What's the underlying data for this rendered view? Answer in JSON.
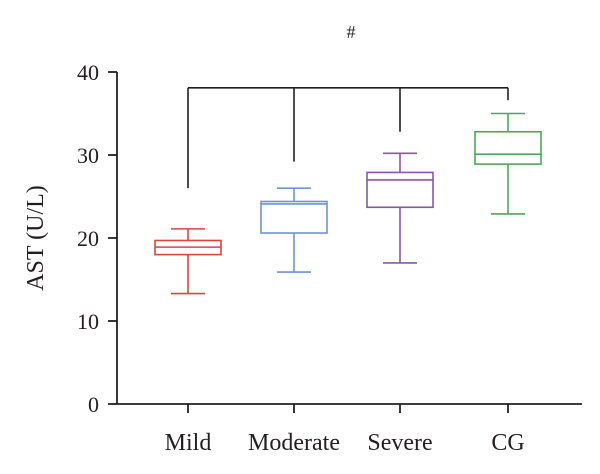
{
  "chart_data": {
    "type": "box",
    "title": "",
    "xlabel": "",
    "ylabel": "AST (U/L)",
    "ylim": [
      0,
      40
    ],
    "yticks": [
      0,
      10,
      20,
      30,
      40
    ],
    "categories": [
      "Mild",
      "Moderate",
      "Severe",
      "CG"
    ],
    "boxes": [
      {
        "category": "Mild",
        "min": 13.3,
        "q1": 18.0,
        "median": 18.9,
        "q3": 19.7,
        "max": 21.1,
        "color": "#d9463a"
      },
      {
        "category": "Moderate",
        "min": 15.9,
        "q1": 20.6,
        "median": 24.1,
        "q3": 24.4,
        "max": 26.0,
        "color": "#6f93d4"
      },
      {
        "category": "Severe",
        "min": 17.0,
        "q1": 23.7,
        "median": 27.0,
        "q3": 27.9,
        "max": 30.2,
        "color": "#8a56a6"
      },
      {
        "category": "CG",
        "min": 22.9,
        "q1": 28.9,
        "median": 30.1,
        "q3": 32.8,
        "max": 35.0,
        "color": "#4fa65a"
      }
    ],
    "annotation": {
      "symbol": "#",
      "bracket_top": 38.1,
      "leg_ends": [
        26.0,
        29.2,
        32.8,
        36.6
      ]
    },
    "grid": false,
    "legend": "none"
  }
}
